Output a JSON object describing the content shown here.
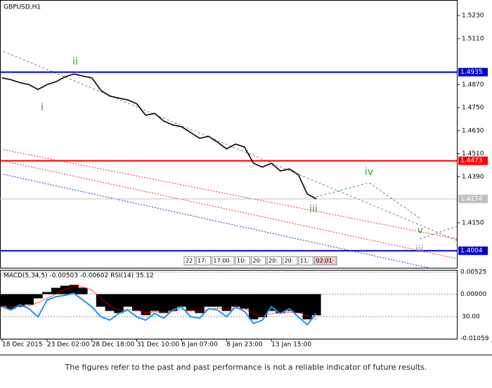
{
  "chart_data": [
    {
      "type": "line",
      "title": "GBPUSD,H1",
      "color": "#000000",
      "values": [
        1.4905,
        1.4895,
        1.488,
        1.487,
        1.4845,
        1.487,
        1.4885,
        1.491,
        1.4925,
        1.4915,
        1.4905,
        1.484,
        1.481,
        1.48,
        1.479,
        1.477,
        1.471,
        1.472,
        1.468,
        1.466,
        1.465,
        1.462,
        1.459,
        1.46,
        1.457,
        1.4535,
        1.456,
        1.4545,
        1.446,
        1.444,
        1.446,
        1.442,
        1.443,
        1.44,
        1.43,
        1.4274
      ],
      "ylim": [
        1.3915,
        1.5311
      ],
      "yticks": [
        {
          "value": 1.523,
          "label": "1.5230"
        },
        {
          "value": 1.511,
          "label": "1.5110"
        },
        {
          "value": 1.487,
          "label": "1.4870"
        },
        {
          "value": 1.475,
          "label": "1.4750"
        },
        {
          "value": 1.463,
          "label": "1.4630"
        },
        {
          "value": 1.451,
          "label": "1.4510"
        },
        {
          "value": 1.439,
          "label": "1.4390"
        },
        {
          "value": 1.415,
          "label": "1.4150"
        }
      ],
      "levels": [
        {
          "value": 1.4935,
          "color": "#0000cc"
        },
        {
          "value": 1.4473,
          "color": "#ff0000"
        },
        {
          "value": 1.4274,
          "color": "#c0c0c0"
        },
        {
          "value": 1.4004,
          "color": "#0000cc"
        }
      ],
      "annotations": [
        {
          "text": "i",
          "color": "#3a9a3a"
        },
        {
          "text": "ii",
          "color": "#3a9a3a"
        },
        {
          "text": "iii",
          "color": "#3a9a3a"
        },
        {
          "text": "iv",
          "color": "#3a9a3a"
        },
        {
          "text": "v",
          "color": "#3a9a3a"
        },
        {
          "text": "iii",
          "color": "#999999"
        }
      ],
      "time_labels": [
        "22",
        "17:",
        "17:00",
        "10:",
        "20:",
        "20:",
        "20:",
        "11:",
        "02:01"
      ]
    },
    {
      "type": "macd",
      "subtitle": "MACD(5,34,5) -0.00503 -0.00602 RSI(14) 35.12",
      "categories": [
        "18 Dec 2015",
        null,
        null,
        null,
        null,
        "23 Dec 02:00",
        null,
        null,
        null,
        null,
        "28 Dec 18:00",
        null,
        null,
        null,
        null,
        "31 Dec 10:00",
        null,
        null,
        null,
        null,
        "6 Jan 07:00",
        null,
        null,
        null,
        null,
        "8 Jan 23:00",
        null,
        null,
        null,
        null,
        "13 Jan 15:00",
        null,
        null,
        null,
        null,
        null
      ],
      "series": [
        {
          "name": "MACD",
          "color": "#000000",
          "values": [
            -0.003,
            -0.0035,
            -0.003,
            -0.0025,
            -0.001,
            0.0005,
            0.0015,
            0.002,
            0.0022,
            0.0015,
            0.0,
            -0.003,
            -0.004,
            -0.0045,
            -0.003,
            -0.004,
            -0.005,
            -0.004,
            -0.0045,
            -0.004,
            -0.003,
            -0.004,
            -0.0045,
            -0.003,
            -0.003,
            -0.004,
            -0.003,
            -0.0035,
            -0.006,
            -0.0055,
            -0.004,
            -0.0045,
            -0.004,
            -0.0045,
            -0.006,
            -0.00503
          ]
        },
        {
          "name": "Signal",
          "color": "#ff0000",
          "values": [
            -0.0028,
            -0.003,
            -0.003,
            -0.0028,
            -0.002,
            -0.001,
            0.0,
            0.0012,
            0.0018,
            0.0017,
            0.001,
            -0.001,
            -0.0028,
            -0.0038,
            -0.0036,
            -0.0038,
            -0.0044,
            -0.0042,
            -0.0043,
            -0.0041,
            -0.0036,
            -0.0038,
            -0.0041,
            -0.0036,
            -0.0033,
            -0.0036,
            -0.0034,
            -0.0034,
            -0.0047,
            -0.0052,
            -0.0046,
            -0.0045,
            -0.0043,
            -0.0044,
            -0.0052,
            -0.00602
          ]
        },
        {
          "name": "RSI",
          "color": "#1e90ff",
          "axis": "y2",
          "values": [
            45,
            40,
            48,
            42,
            30,
            55,
            60,
            62,
            65,
            55,
            45,
            30,
            25,
            35,
            40,
            30,
            25,
            35,
            28,
            40,
            45,
            30,
            28,
            42,
            40,
            30,
            45,
            38,
            20,
            25,
            45,
            35,
            42,
            30,
            18,
            35.12
          ]
        }
      ],
      "ylim": [
        -0.0108,
        0.0056
      ],
      "yticks": [
        {
          "value": 0.00525,
          "label": "0.00525"
        },
        {
          "value": 0,
          "label": "0.00000"
        },
        {
          "value": -0.01059,
          "label": "-0.01059"
        }
      ],
      "y2lim": [
        -4,
        99
      ],
      "y2ticks": [
        {
          "value": 30,
          "label": "30.00"
        }
      ]
    }
  ],
  "footer": "The figures refer to the past and past performance is not a reliable indicator of future results."
}
